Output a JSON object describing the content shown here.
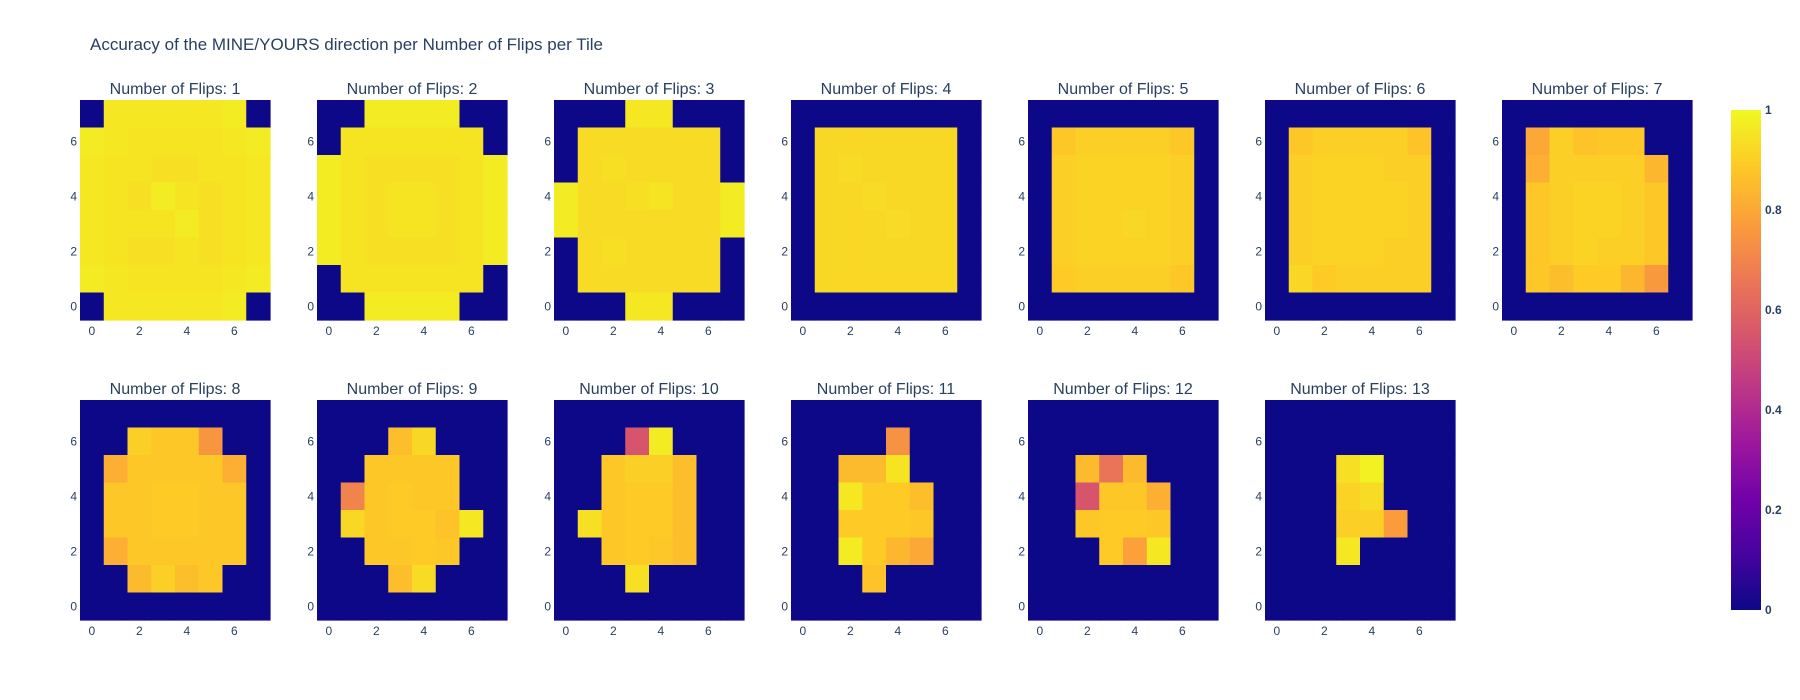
{
  "chart_data": {
    "type": "heatmap",
    "title": "Accuracy of the MINE/YOURS direction per Number of Flips per Tile",
    "subplot_title_prefix": "Number of Flips: ",
    "x_ticks": [
      "0",
      "2",
      "4",
      "6"
    ],
    "y_ticks": [
      "0",
      "2",
      "4",
      "6"
    ],
    "colorscale": [
      "#0d0887",
      "#46039f",
      "#7201a8",
      "#9c179e",
      "#bd3786",
      "#d8576b",
      "#ed7953",
      "#fb9f3a",
      "#fdca26",
      "#f0f921"
    ],
    "colorbar": {
      "range": [
        0,
        1
      ],
      "ticks": [
        "0",
        "0.2",
        "0.4",
        "0.6",
        "0.8",
        "1"
      ]
    },
    "panels": [
      {
        "flips": 1,
        "grid": [
          [
            0,
            0.96,
            0.96,
            0.96,
            0.96,
            0.96,
            0.97,
            0
          ],
          [
            0.97,
            0.96,
            0.95,
            0.95,
            0.95,
            0.95,
            0.96,
            0.97
          ],
          [
            0.96,
            0.95,
            0.95,
            0.94,
            0.94,
            0.95,
            0.95,
            0.96
          ],
          [
            0.96,
            0.95,
            0.94,
            0.97,
            0.95,
            0.94,
            0.95,
            0.96
          ],
          [
            0.96,
            0.95,
            0.95,
            0.95,
            0.97,
            0.94,
            0.95,
            0.96
          ],
          [
            0.96,
            0.95,
            0.94,
            0.94,
            0.95,
            0.94,
            0.95,
            0.96
          ],
          [
            0.97,
            0.96,
            0.95,
            0.95,
            0.95,
            0.95,
            0.96,
            0.97
          ],
          [
            0,
            0.96,
            0.96,
            0.96,
            0.96,
            0.96,
            0.97,
            0
          ]
        ]
      },
      {
        "flips": 2,
        "grid": [
          [
            0,
            0,
            0.97,
            0.97,
            0.97,
            0.97,
            0,
            0
          ],
          [
            0,
            0.95,
            0.95,
            0.95,
            0.95,
            0.95,
            0.95,
            0
          ],
          [
            0.97,
            0.95,
            0.94,
            0.94,
            0.94,
            0.94,
            0.95,
            0.97
          ],
          [
            0.97,
            0.95,
            0.94,
            0.95,
            0.95,
            0.94,
            0.95,
            0.97
          ],
          [
            0.97,
            0.95,
            0.94,
            0.95,
            0.95,
            0.94,
            0.95,
            0.97
          ],
          [
            0.97,
            0.95,
            0.94,
            0.94,
            0.94,
            0.94,
            0.95,
            0.97
          ],
          [
            0,
            0.95,
            0.95,
            0.95,
            0.95,
            0.95,
            0.95,
            0
          ],
          [
            0,
            0,
            0.97,
            0.97,
            0.97,
            0.97,
            0,
            0
          ]
        ]
      },
      {
        "flips": 3,
        "grid": [
          [
            0,
            0,
            0,
            0.96,
            0.96,
            0,
            0,
            0
          ],
          [
            0,
            0.93,
            0.93,
            0.93,
            0.93,
            0.93,
            0.93,
            0
          ],
          [
            0,
            0.93,
            0.94,
            0.93,
            0.93,
            0.93,
            0.93,
            0
          ],
          [
            0.97,
            0.93,
            0.93,
            0.94,
            0.95,
            0.93,
            0.93,
            0.97
          ],
          [
            0.97,
            0.93,
            0.93,
            0.93,
            0.93,
            0.93,
            0.93,
            0.97
          ],
          [
            0,
            0.93,
            0.94,
            0.93,
            0.93,
            0.93,
            0.93,
            0
          ],
          [
            0,
            0.93,
            0.93,
            0.93,
            0.93,
            0.93,
            0.93,
            0
          ],
          [
            0,
            0,
            0,
            0.96,
            0.96,
            0,
            0,
            0
          ]
        ]
      },
      {
        "flips": 4,
        "grid": [
          [
            0,
            0,
            0,
            0,
            0,
            0,
            0,
            0
          ],
          [
            0,
            0.92,
            0.92,
            0.92,
            0.92,
            0.92,
            0.92,
            0
          ],
          [
            0,
            0.92,
            0.93,
            0.92,
            0.92,
            0.92,
            0.92,
            0
          ],
          [
            0,
            0.92,
            0.92,
            0.93,
            0.92,
            0.92,
            0.92,
            0
          ],
          [
            0,
            0.92,
            0.92,
            0.92,
            0.93,
            0.92,
            0.92,
            0
          ],
          [
            0,
            0.92,
            0.92,
            0.92,
            0.92,
            0.92,
            0.92,
            0
          ],
          [
            0,
            0.92,
            0.92,
            0.92,
            0.92,
            0.92,
            0.92,
            0
          ],
          [
            0,
            0,
            0,
            0,
            0,
            0,
            0,
            0
          ]
        ]
      },
      {
        "flips": 5,
        "grid": [
          [
            0,
            0,
            0,
            0,
            0,
            0,
            0,
            0
          ],
          [
            0,
            0.88,
            0.9,
            0.9,
            0.9,
            0.9,
            0.88,
            0
          ],
          [
            0,
            0.9,
            0.91,
            0.91,
            0.91,
            0.91,
            0.9,
            0
          ],
          [
            0,
            0.9,
            0.91,
            0.91,
            0.91,
            0.91,
            0.9,
            0
          ],
          [
            0,
            0.9,
            0.91,
            0.91,
            0.92,
            0.91,
            0.9,
            0
          ],
          [
            0,
            0.9,
            0.91,
            0.91,
            0.91,
            0.91,
            0.9,
            0
          ],
          [
            0,
            0.89,
            0.9,
            0.9,
            0.9,
            0.9,
            0.88,
            0
          ],
          [
            0,
            0,
            0,
            0,
            0,
            0,
            0,
            0
          ]
        ]
      },
      {
        "flips": 6,
        "grid": [
          [
            0,
            0,
            0,
            0,
            0,
            0,
            0,
            0
          ],
          [
            0,
            0.88,
            0.9,
            0.9,
            0.9,
            0.9,
            0.87,
            0
          ],
          [
            0,
            0.9,
            0.91,
            0.91,
            0.91,
            0.9,
            0.9,
            0
          ],
          [
            0,
            0.9,
            0.91,
            0.91,
            0.91,
            0.91,
            0.9,
            0
          ],
          [
            0,
            0.9,
            0.91,
            0.91,
            0.91,
            0.91,
            0.9,
            0
          ],
          [
            0,
            0.9,
            0.91,
            0.91,
            0.91,
            0.9,
            0.9,
            0
          ],
          [
            0,
            0.92,
            0.89,
            0.9,
            0.9,
            0.9,
            0.9,
            0
          ],
          [
            0,
            0,
            0,
            0,
            0,
            0,
            0,
            0
          ]
        ]
      },
      {
        "flips": 7,
        "grid": [
          [
            0,
            0,
            0,
            0,
            0,
            0,
            0,
            0
          ],
          [
            0,
            0.8,
            0.9,
            0.87,
            0.88,
            0.88,
            0,
            0
          ],
          [
            0,
            0.82,
            0.9,
            0.9,
            0.9,
            0.9,
            0.84,
            0
          ],
          [
            0,
            0.88,
            0.9,
            0.91,
            0.91,
            0.9,
            0.88,
            0
          ],
          [
            0,
            0.88,
            0.9,
            0.91,
            0.91,
            0.9,
            0.88,
            0
          ],
          [
            0,
            0.88,
            0.9,
            0.91,
            0.9,
            0.9,
            0.88,
            0
          ],
          [
            0,
            0.88,
            0.86,
            0.89,
            0.89,
            0.84,
            0.76,
            0
          ],
          [
            0,
            0,
            0,
            0,
            0,
            0,
            0,
            0
          ]
        ]
      },
      {
        "flips": 8,
        "grid": [
          [
            0,
            0,
            0,
            0,
            0,
            0,
            0,
            0
          ],
          [
            0,
            0,
            0.9,
            0.88,
            0.88,
            0.75,
            0,
            0
          ],
          [
            0,
            0.82,
            0.88,
            0.88,
            0.88,
            0.88,
            0.82,
            0
          ],
          [
            0,
            0.88,
            0.88,
            0.89,
            0.89,
            0.88,
            0.88,
            0
          ],
          [
            0,
            0.88,
            0.88,
            0.89,
            0.89,
            0.88,
            0.88,
            0
          ],
          [
            0,
            0.82,
            0.88,
            0.88,
            0.88,
            0.88,
            0.88,
            0
          ],
          [
            0,
            0,
            0.85,
            0.9,
            0.86,
            0.88,
            0,
            0
          ],
          [
            0,
            0,
            0,
            0,
            0,
            0,
            0,
            0
          ]
        ]
      },
      {
        "flips": 9,
        "grid": [
          [
            0,
            0,
            0,
            0,
            0,
            0,
            0,
            0
          ],
          [
            0,
            0,
            0,
            0.86,
            0.92,
            0,
            0,
            0
          ],
          [
            0,
            0,
            0.88,
            0.88,
            0.88,
            0.88,
            0,
            0
          ],
          [
            0,
            0.7,
            0.88,
            0.89,
            0.88,
            0.88,
            0,
            0
          ],
          [
            0,
            0.92,
            0.88,
            0.89,
            0.89,
            0.87,
            0.96,
            0
          ],
          [
            0,
            0,
            0.88,
            0.88,
            0.89,
            0.88,
            0,
            0
          ],
          [
            0,
            0,
            0,
            0.86,
            0.93,
            0,
            0,
            0
          ],
          [
            0,
            0,
            0,
            0,
            0,
            0,
            0,
            0
          ]
        ]
      },
      {
        "flips": 10,
        "grid": [
          [
            0,
            0,
            0,
            0,
            0,
            0,
            0,
            0
          ],
          [
            0,
            0,
            0,
            0.55,
            0.97,
            0,
            0,
            0
          ],
          [
            0,
            0,
            0.88,
            0.9,
            0.9,
            0.86,
            0,
            0
          ],
          [
            0,
            0,
            0.88,
            0.89,
            0.89,
            0.86,
            0,
            0
          ],
          [
            0,
            0.94,
            0.88,
            0.89,
            0.89,
            0.86,
            0,
            0
          ],
          [
            0,
            0,
            0.88,
            0.89,
            0.88,
            0.86,
            0,
            0
          ],
          [
            0,
            0,
            0,
            0.94,
            0,
            0,
            0,
            0
          ],
          [
            0,
            0,
            0,
            0,
            0,
            0,
            0,
            0
          ]
        ]
      },
      {
        "flips": 11,
        "grid": [
          [
            0,
            0,
            0,
            0,
            0,
            0,
            0,
            0
          ],
          [
            0,
            0,
            0,
            0,
            0.74,
            0,
            0,
            0
          ],
          [
            0,
            0,
            0.85,
            0.85,
            0.95,
            0,
            0,
            0
          ],
          [
            0,
            0,
            0.96,
            0.89,
            0.89,
            0.86,
            0,
            0
          ],
          [
            0,
            0,
            0.89,
            0.89,
            0.89,
            0.88,
            0,
            0
          ],
          [
            0,
            0,
            0.97,
            0.89,
            0.84,
            0.8,
            0,
            0
          ],
          [
            0,
            0,
            0,
            0.87,
            0,
            0,
            0,
            0
          ],
          [
            0,
            0,
            0,
            0,
            0,
            0,
            0,
            0
          ]
        ]
      },
      {
        "flips": 12,
        "grid": [
          [
            0,
            0,
            0,
            0,
            0,
            0,
            0,
            0
          ],
          [
            0,
            0,
            0,
            0,
            0,
            0,
            0,
            0
          ],
          [
            0,
            0,
            0.85,
            0.65,
            0.85,
            0,
            0,
            0
          ],
          [
            0,
            0,
            0.55,
            0.88,
            0.88,
            0.82,
            0,
            0
          ],
          [
            0,
            0,
            0.88,
            0.89,
            0.89,
            0.88,
            0,
            0
          ],
          [
            0,
            0,
            0,
            0.89,
            0.78,
            0.96,
            0,
            0
          ],
          [
            0,
            0,
            0,
            0,
            0,
            0,
            0,
            0
          ],
          [
            0,
            0,
            0,
            0,
            0,
            0,
            0,
            0
          ]
        ]
      },
      {
        "flips": 13,
        "grid": [
          [
            0,
            0,
            0,
            0,
            0,
            0,
            0,
            0
          ],
          [
            0,
            0,
            0,
            0,
            0,
            0,
            0,
            0
          ],
          [
            0,
            0,
            0,
            0.94,
            0.98,
            0,
            0,
            0
          ],
          [
            0,
            0,
            0,
            0.91,
            0.93,
            0,
            0,
            0
          ],
          [
            0,
            0,
            0,
            0.9,
            0.9,
            0.77,
            0,
            0
          ],
          [
            0,
            0,
            0,
            0.96,
            0,
            0,
            0,
            0
          ],
          [
            0,
            0,
            0,
            0,
            0,
            0,
            0,
            0
          ],
          [
            0,
            0,
            0,
            0,
            0,
            0,
            0,
            0
          ]
        ]
      }
    ]
  }
}
